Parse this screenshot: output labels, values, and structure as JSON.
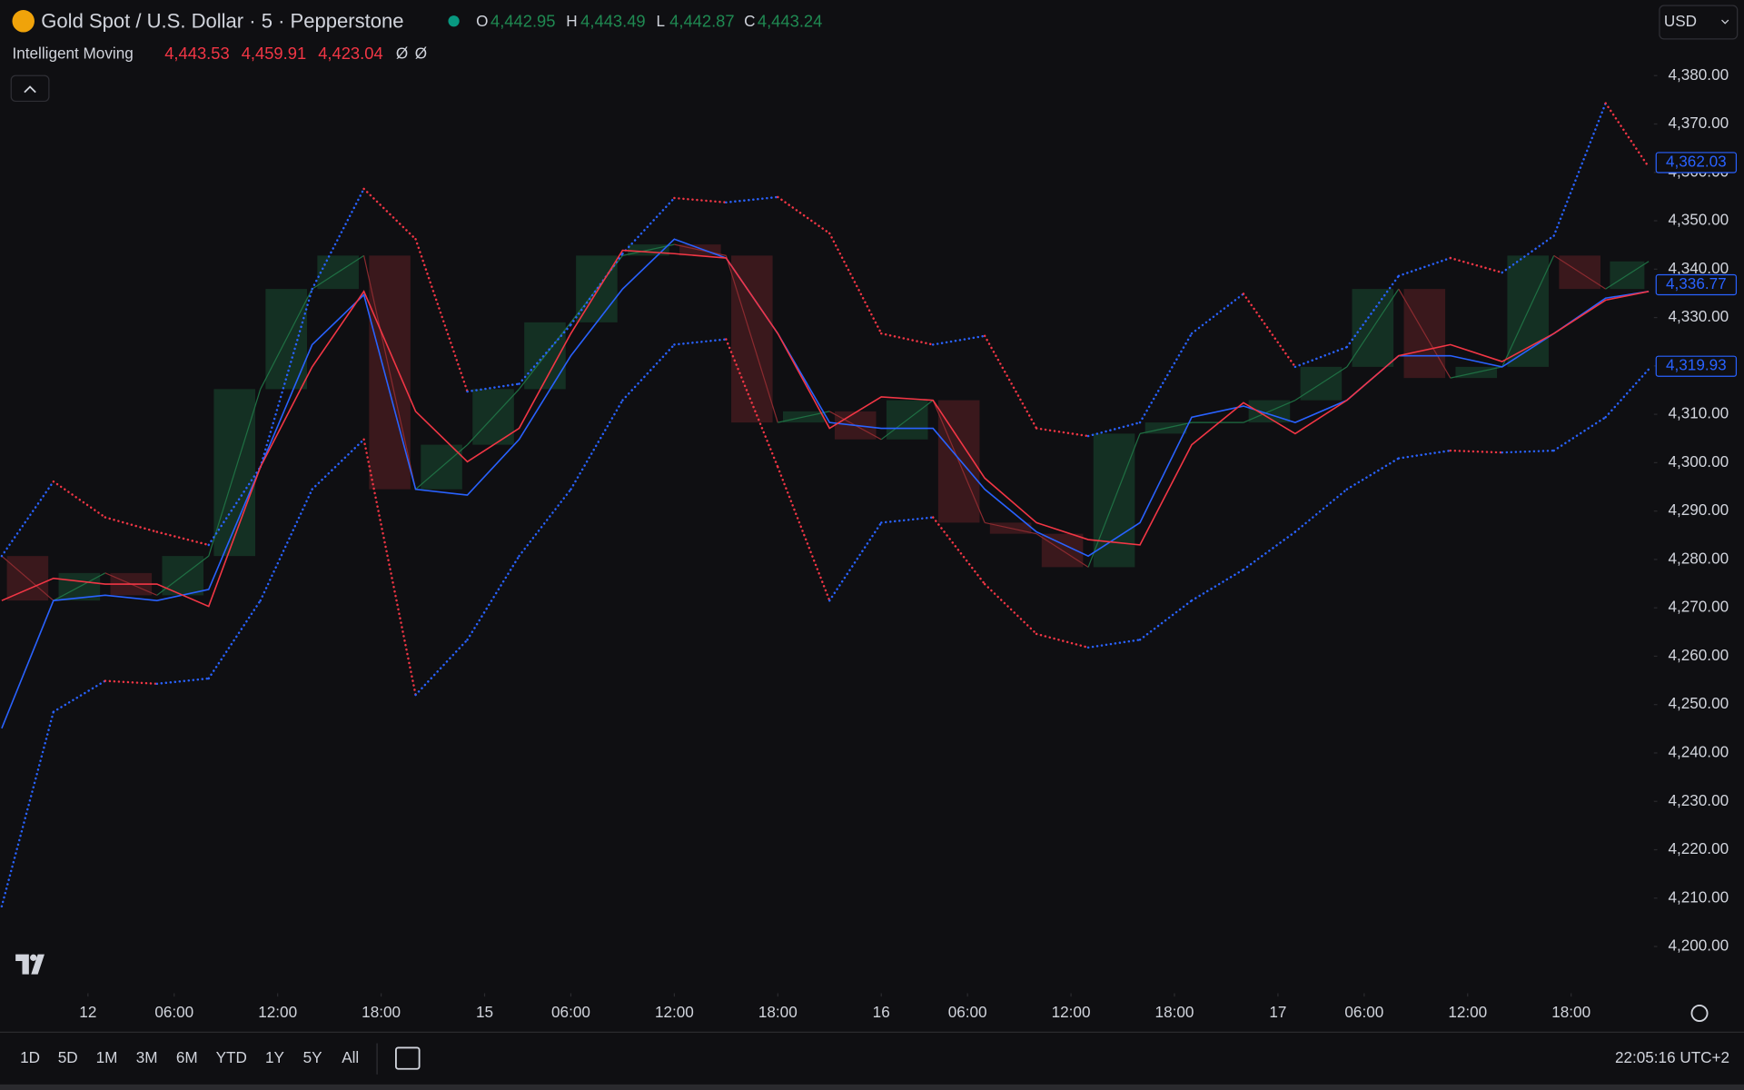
{
  "header": {
    "symbol": "Gold Spot / U.S. Dollar · 5 · Pepperstone",
    "ohlc": [
      {
        "key": "O",
        "value": "4,442.95"
      },
      {
        "key": "H",
        "value": "4,443.49"
      },
      {
        "key": "L",
        "value": "4,442.87"
      },
      {
        "key": "C",
        "value": "4,443.24"
      }
    ],
    "indicator": {
      "name": "Intelligent Moving",
      "values": [
        "4,443.53",
        "4,459.91",
        "4,423.04"
      ],
      "flags": [
        "Ø",
        "Ø"
      ]
    },
    "currency": "USD"
  },
  "toolbar": {
    "ranges": [
      "1D",
      "5D",
      "1M",
      "3M",
      "6M",
      "YTD",
      "1Y",
      "5Y",
      "All"
    ],
    "clock": "22:05:16 UTC+2"
  },
  "chart_data": {
    "type": "line",
    "x": [
      -5,
      -2,
      1,
      4,
      7,
      10,
      13,
      16,
      19,
      22,
      25,
      28,
      31,
      34,
      37,
      40,
      43,
      46,
      49,
      52,
      55,
      58,
      61,
      64,
      67,
      70,
      73,
      76,
      79,
      82,
      85,
      88,
      90.5
    ],
    "series": [
      {
        "style": "dots",
        "up_color": "#2962ff",
        "down_color": "#f23645",
        "values": [
          4280.7,
          4296.1,
          4288.7,
          4285.7,
          4283.0,
          4299.1,
          4335.9,
          4356.6,
          4346.2,
          4314.7,
          4316.3,
          4328.5,
          4343.2,
          4354.7,
          4353.8,
          4354.9,
          4347.4,
          4326.7,
          4324.4,
          4326.2,
          4307.1,
          4305.5,
          4308.3,
          4326.7,
          4334.9,
          4319.8,
          4323.9,
          4338.6,
          4342.3,
          4339.3,
          4346.9,
          4374.3,
          4361.1
        ]
      },
      {
        "style": "dots",
        "up_color": "#2962ff",
        "down_color": "#f23645",
        "values": [
          4208.3,
          4248.5,
          4254.9,
          4254.3,
          4255.4,
          4271.5,
          4294.5,
          4304.8,
          4252.0,
          4263.4,
          4280.7,
          4294.5,
          4312.9,
          4324.4,
          4325.5,
          4299.1,
          4271.5,
          4287.6,
          4288.7,
          4274.9,
          4264.6,
          4261.8,
          4263.4,
          4271.5,
          4277.9,
          4285.7,
          4294.5,
          4300.9,
          4302.5,
          4302.1,
          4302.5,
          4309.4,
          4319.3
        ]
      },
      {
        "style": "line",
        "color": "#2962ff",
        "values": [
          4245.1,
          4271.5,
          4272.6,
          4271.5,
          4273.8,
          4299.1,
          4324.4,
          4334.7,
          4294.5,
          4293.3,
          4304.8,
          4322.1,
          4335.9,
          4346.2,
          4342.3,
          4326.7,
          4308.3,
          4307.1,
          4307.1,
          4294.5,
          4285.7,
          4280.7,
          4287.6,
          4309.4,
          4311.7,
          4308.3,
          4312.9,
          4322.1,
          4322.1,
          4319.8,
          4326.7,
          4334.0,
          4335.4
        ]
      },
      {
        "style": "line",
        "color": "#f23645",
        "values": [
          4271.5,
          4276.1,
          4274.9,
          4274.9,
          4270.3,
          4299.1,
          4319.8,
          4335.4,
          4310.6,
          4300.2,
          4307.1,
          4326.7,
          4343.9,
          4343.2,
          4342.3,
          4326.7,
          4307.1,
          4313.6,
          4312.9,
          4296.8,
          4287.6,
          4284.1,
          4283.0,
          4303.7,
          4312.4,
          4306.0,
          4312.9,
          4322.1,
          4324.4,
          4320.9,
          4326.7,
          4333.6,
          4335.4
        ]
      },
      {
        "style": "candles",
        "up_color": "#1f6f43",
        "down_color": "#8a2a2f",
        "values": [
          4280.7,
          4271.5,
          4277.2,
          4272.6,
          4280.7,
          4315.2,
          4335.9,
          4342.8,
          4294.5,
          4303.7,
          4315.2,
          4329.0,
          4342.8,
          4345.1,
          4342.8,
          4308.3,
          4310.6,
          4304.8,
          4312.9,
          4287.6,
          4285.3,
          4278.4,
          4306.0,
          4308.3,
          4308.3,
          4312.9,
          4319.8,
          4335.9,
          4317.5,
          4319.8,
          4342.8,
          4335.9,
          4341.6
        ]
      }
    ],
    "xlim": [
      -5.1,
      90.8
    ],
    "xticks": [
      {
        "value": 0,
        "label": "12"
      },
      {
        "value": 5,
        "label": "06:00"
      },
      {
        "value": 11,
        "label": "12:00"
      },
      {
        "value": 17,
        "label": "18:00"
      },
      {
        "value": 23,
        "label": "15"
      },
      {
        "value": 28,
        "label": "06:00"
      },
      {
        "value": 34,
        "label": "12:00"
      },
      {
        "value": 40,
        "label": "18:00"
      },
      {
        "value": 46,
        "label": "16"
      },
      {
        "value": 51,
        "label": "06:00"
      },
      {
        "value": 57,
        "label": "12:00"
      },
      {
        "value": 63,
        "label": "18:00"
      },
      {
        "value": 69,
        "label": "17"
      },
      {
        "value": 74,
        "label": "06:00"
      },
      {
        "value": 80,
        "label": "12:00"
      },
      {
        "value": 86,
        "label": "18:00"
      }
    ],
    "ylim": [
      4190.34,
      4395.63
    ],
    "yticks": [
      {
        "value": 4200,
        "label": "4,200.00"
      },
      {
        "value": 4210,
        "label": "4,210.00"
      },
      {
        "value": 4220,
        "label": "4,220.00"
      },
      {
        "value": 4230,
        "label": "4,230.00"
      },
      {
        "value": 4240,
        "label": "4,240.00"
      },
      {
        "value": 4250,
        "label": "4,250.00"
      },
      {
        "value": 4260,
        "label": "4,260.00"
      },
      {
        "value": 4270,
        "label": "4,270.00"
      },
      {
        "value": 4280,
        "label": "4,280.00"
      },
      {
        "value": 4290,
        "label": "4,290.00"
      },
      {
        "value": 4300,
        "label": "4,300.00"
      },
      {
        "value": 4310,
        "label": "4,310.00"
      },
      {
        "value": 4320,
        "label": "4,320.00"
      },
      {
        "value": 4330,
        "label": "4,330.00"
      },
      {
        "value": 4340,
        "label": "4,340.00"
      },
      {
        "value": 4350,
        "label": "4,350.00"
      },
      {
        "value": 4360,
        "label": "4,360.00"
      },
      {
        "value": 4370,
        "label": "4,370.00"
      },
      {
        "value": 4380,
        "label": "4,380.00"
      }
    ],
    "price_labels": [
      {
        "value": 4362.03,
        "label": "4,362.03"
      },
      {
        "value": 4336.77,
        "label": "4,336.77"
      },
      {
        "value": 4319.93,
        "label": "4,319.93"
      }
    ],
    "price_label_color": "#2962ff"
  }
}
